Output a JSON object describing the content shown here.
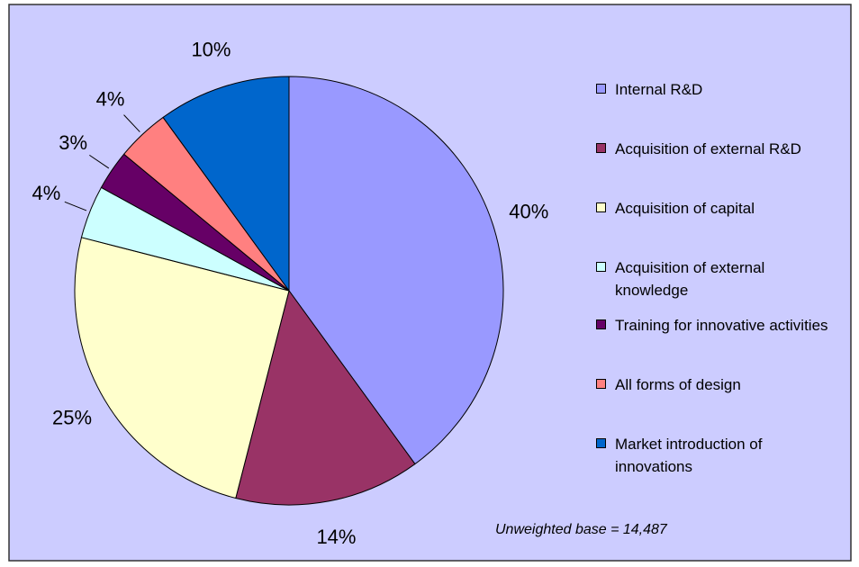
{
  "chart_data": {
    "type": "pie",
    "categories": [
      "Internal R&D",
      "Acquisition of external R&D",
      "Acquisition of capital",
      "Acquisition of external knowledge",
      "Training for innovative activities",
      "All forms of design",
      "Market introduction of innovations"
    ],
    "values": [
      40,
      14,
      25,
      4,
      3,
      4,
      10
    ],
    "value_labels": [
      "40%",
      "14%",
      "25%",
      "4%",
      "3%",
      "4%",
      "10%"
    ],
    "colors": [
      "#9999ff",
      "#993366",
      "#ffffcc",
      "#ccffff",
      "#660066",
      "#ff8080",
      "#0066cc"
    ],
    "annotation": "Unweighted base = 14,487",
    "legend": "right"
  }
}
